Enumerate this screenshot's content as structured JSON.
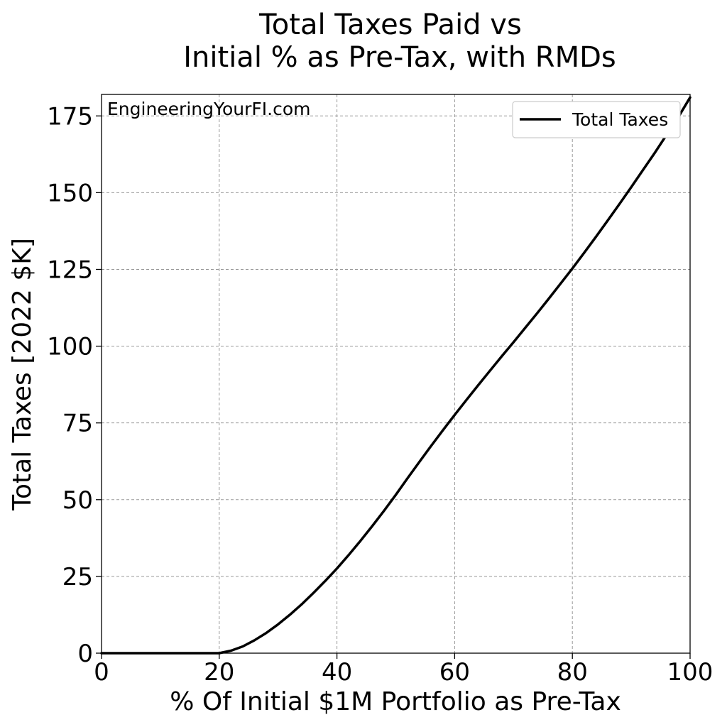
{
  "chart_data": {
    "type": "line",
    "title_line1": "Total Taxes Paid vs",
    "title_line2": "Initial % as Pre-Tax, with RMDs",
    "xlabel": "% Of Initial $1M Portfolio as Pre-Tax",
    "ylabel": "Total Taxes [2022 $K]",
    "xlim": [
      0,
      100
    ],
    "ylim": [
      0,
      182
    ],
    "xticks": [
      0,
      20,
      40,
      60,
      80,
      100
    ],
    "yticks": [
      0,
      25,
      50,
      75,
      100,
      125,
      150,
      175
    ],
    "grid": true,
    "legend_position": "top-right",
    "watermark": "EngineeringYourFI.com",
    "line_color": "#000000",
    "grid_color": "#999999",
    "series": [
      {
        "name": "Total Taxes",
        "x": [
          0,
          5,
          10,
          15,
          20,
          22,
          24,
          26,
          28,
          30,
          32,
          34,
          36,
          38,
          40,
          42,
          44,
          46,
          48,
          50,
          52,
          54,
          56,
          58,
          60,
          62,
          64,
          66,
          68,
          70,
          72,
          74,
          76,
          78,
          80,
          82,
          84,
          86,
          88,
          90,
          92,
          94,
          96,
          98,
          100
        ],
        "y": [
          0,
          0,
          0,
          0,
          0,
          0.8,
          2.2,
          4.2,
          6.6,
          9.4,
          12.5,
          15.9,
          19.6,
          23.5,
          27.6,
          32.0,
          36.6,
          41.4,
          46.4,
          51.6,
          57.0,
          62.3,
          67.5,
          72.6,
          77.6,
          82.5,
          87.3,
          92.0,
          96.7,
          101.3,
          106.0,
          110.7,
          115.5,
          120.4,
          125.3,
          130.4,
          135.6,
          140.9,
          146.3,
          151.8,
          157.4,
          163.0,
          168.8,
          174.6,
          181.0
        ]
      }
    ]
  }
}
